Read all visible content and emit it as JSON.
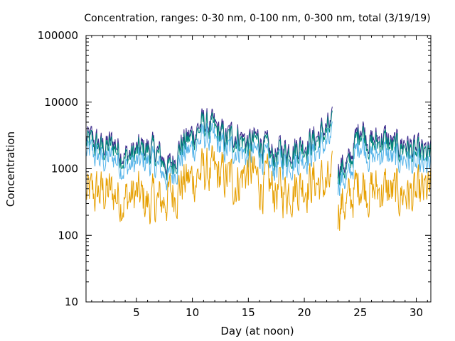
{
  "chart_data": {
    "type": "line",
    "title": "Concentration, ranges: 0-30 nm, 0-100 nm, 0-300 nm, total (3/19/19)",
    "xlabel": "Day (at noon)",
    "ylabel": "Concentration",
    "xlim": [
      0.5,
      31.3
    ],
    "ylim": [
      10,
      100000
    ],
    "yscale": "log",
    "grid": false,
    "legend": "none",
    "x_ticks": [
      5,
      10,
      15,
      20,
      25,
      30
    ],
    "x_tick_labels": [
      "5",
      "10",
      "15",
      "20",
      "25",
      "30"
    ],
    "y_ticks": [
      10,
      100,
      1000,
      10000,
      100000
    ],
    "y_tick_labels": [
      "10",
      "100",
      "1000",
      "10000",
      "100000"
    ],
    "colors": {
      "total": "#3b2a8c",
      "range_0_300": "#00897b",
      "range_0_100": "#56b4e9",
      "range_0_30": "#e69f00"
    },
    "daily_anchors": {
      "x": [
        1,
        2,
        3,
        4,
        5,
        6,
        7,
        8,
        9,
        10,
        11,
        12,
        13,
        14,
        15,
        16,
        17,
        18,
        19,
        20,
        21,
        22,
        23,
        24,
        25,
        26,
        27,
        28,
        29,
        30,
        31
      ],
      "total": [
        2800,
        2200,
        2600,
        1600,
        1900,
        2200,
        1700,
        1100,
        2500,
        3400,
        5200,
        4200,
        3000,
        3600,
        2500,
        3000,
        1600,
        2000,
        2200,
        2500,
        3000,
        4200,
        null,
        1200,
        5000,
        2500,
        3200,
        2200,
        2600,
        1800,
        1700
      ],
      "range_0_300": [
        2400,
        1900,
        2200,
        1400,
        1700,
        1900,
        1500,
        950,
        2200,
        2900,
        4500,
        3600,
        2600,
        3100,
        2200,
        2600,
        1400,
        1700,
        1900,
        2200,
        2600,
        3600,
        null,
        1000,
        4300,
        2100,
        2700,
        1900,
        2200,
        1500,
        1500
      ],
      "range_0_100": [
        1700,
        1300,
        1500,
        1000,
        1200,
        1300,
        1000,
        700,
        1500,
        2000,
        3000,
        2500,
        1800,
        2100,
        1500,
        1800,
        1000,
        1200,
        1300,
        1500,
        1800,
        2400,
        null,
        700,
        2800,
        1400,
        1800,
        1300,
        1500,
        1000,
        1000
      ],
      "range_0_30": [
        400,
        450,
        420,
        350,
        400,
        300,
        300,
        400,
        600,
        700,
        900,
        800,
        700,
        650,
        1000,
        600,
        500,
        450,
        550,
        600,
        650,
        550,
        null,
        300,
        700,
        450,
        500,
        400,
        450,
        350,
        450
      ]
    },
    "series": [
      {
        "key": "total"
      },
      {
        "key": "range_0_300"
      },
      {
        "key": "range_0_100"
      },
      {
        "key": "range_0_30"
      }
    ]
  }
}
